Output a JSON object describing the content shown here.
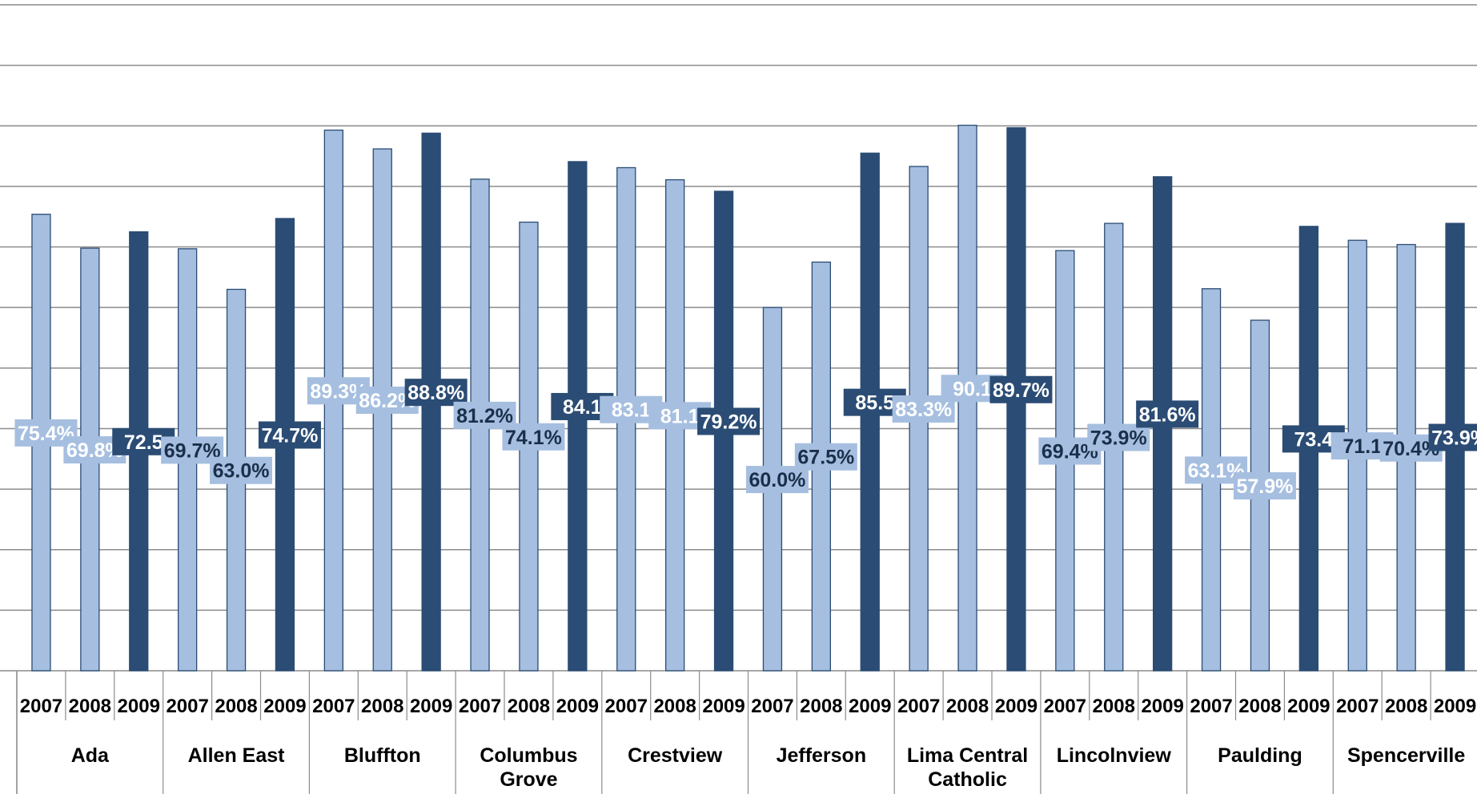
{
  "chart_data": {
    "type": "bar",
    "groups": [
      {
        "name": "Ada",
        "name_lines": [
          "Ada"
        ],
        "values": [
          75.4,
          69.8,
          72.5
        ],
        "label_texts": [
          "75.4%",
          "69.8%",
          "72.5"
        ]
      },
      {
        "name": "Allen East",
        "name_lines": [
          "Allen East"
        ],
        "values": [
          69.7,
          63.0,
          74.7
        ],
        "label_texts": [
          "69.7%",
          "63.0%",
          "74.7%"
        ]
      },
      {
        "name": "Bluffton",
        "name_lines": [
          "Bluffton"
        ],
        "values": [
          89.3,
          86.2,
          88.8
        ],
        "label_texts": [
          "89.3%",
          "86.2%",
          "88.8%"
        ]
      },
      {
        "name": "Columbus Grove",
        "name_lines": [
          "Columbus",
          "Grove"
        ],
        "values": [
          81.2,
          74.1,
          84.1
        ],
        "label_texts": [
          "81.2%",
          "74.1%",
          "84.1"
        ]
      },
      {
        "name": "Crestview",
        "name_lines": [
          "Crestview"
        ],
        "values": [
          83.1,
          81.1,
          79.2
        ],
        "label_texts": [
          "83.1",
          "81.1",
          "79.2%"
        ]
      },
      {
        "name": "Jefferson",
        "name_lines": [
          "Jefferson"
        ],
        "values": [
          60.0,
          67.5,
          85.5
        ],
        "label_texts": [
          "60.0%",
          "67.5%",
          "85.5"
        ]
      },
      {
        "name": "Lima Central Catholic",
        "name_lines": [
          "Lima Central",
          "Catholic"
        ],
        "values": [
          83.3,
          90.1,
          89.7
        ],
        "label_texts": [
          "83.3%",
          "90.1",
          "89.7%"
        ]
      },
      {
        "name": "Lincolnview",
        "name_lines": [
          "Lincolnview"
        ],
        "values": [
          69.4,
          73.9,
          81.6
        ],
        "label_texts": [
          "69.4%",
          "73.9%",
          "81.6%"
        ]
      },
      {
        "name": "Paulding",
        "name_lines": [
          "Paulding"
        ],
        "values": [
          63.1,
          57.9,
          73.4
        ],
        "label_texts": [
          "63.1%",
          "57.9%",
          "73.4"
        ]
      },
      {
        "name": "Spencerville",
        "name_lines": [
          "Spencerville"
        ],
        "values": [
          71.1,
          70.4,
          73.9
        ],
        "label_texts": [
          "71.1",
          "70.4%",
          "73.9%"
        ]
      }
    ],
    "years": [
      "2007",
      "2008",
      "2009"
    ],
    "ylim": [
      0,
      100
    ],
    "grid": true,
    "legend": "none",
    "colors": {
      "prior_years_bar": "#a6bfe0",
      "latest_year_bar": "#2b4c74",
      "bar_outline": "#2b4c74",
      "gridline": "#8c8c8c",
      "light_label_text": "#ffffff",
      "dark_label_text": "#ffffff",
      "alt_label_text": "#1b2f4a"
    }
  }
}
